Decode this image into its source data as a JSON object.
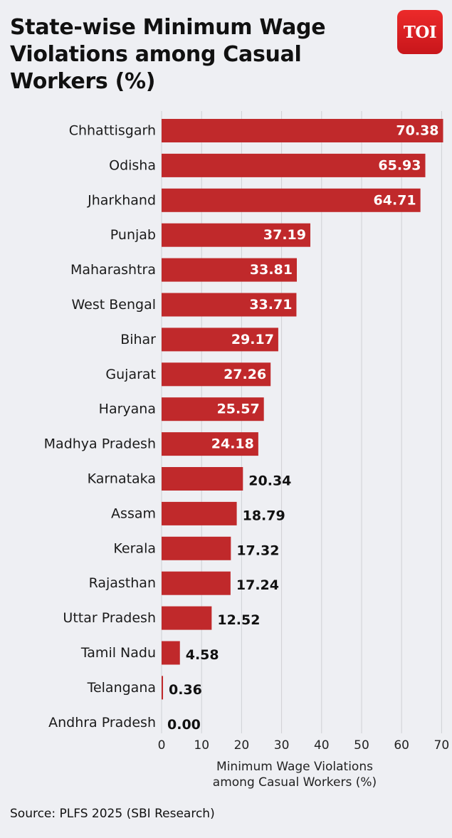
{
  "header": {
    "title": "State-wise Minimum Wage Violations among Casual Workers (%)",
    "logo_text": "TOI"
  },
  "chart_data": {
    "type": "bar",
    "orientation": "horizontal",
    "categories": [
      "Chhattisgarh",
      "Odisha",
      "Jharkhand",
      "Punjab",
      "Maharashtra",
      "West Bengal",
      "Bihar",
      "Gujarat",
      "Haryana",
      "Madhya Pradesh",
      "Karnataka",
      "Assam",
      "Kerala",
      "Rajasthan",
      "Uttar Pradesh",
      "Tamil Nadu",
      "Telangana",
      "Andhra Pradesh"
    ],
    "values": [
      70.38,
      65.93,
      64.71,
      37.19,
      33.81,
      33.71,
      29.17,
      27.26,
      25.57,
      24.18,
      20.34,
      18.79,
      17.32,
      17.24,
      12.52,
      4.58,
      0.36,
      0.0
    ],
    "value_labels": [
      "70.38",
      "65.93",
      "64.71",
      "37.19",
      "33.81",
      "33.71",
      "29.17",
      "27.26",
      "25.57",
      "24.18",
      "20.34",
      "18.79",
      "17.32",
      "17.24",
      "12.52",
      "4.58",
      "0.36",
      "0.00"
    ],
    "xlabel": [
      "Minimum Wage Violations",
      "among Casual Workers (%)"
    ],
    "xlim": [
      0,
      71
    ],
    "xticks": [
      0,
      10,
      20,
      30,
      40,
      50,
      60,
      70
    ],
    "grid": "vertical",
    "bar_color": "#c0292b",
    "legend": "none"
  },
  "footer": {
    "source": "Source: PLFS 2025 (SBI Research)"
  }
}
